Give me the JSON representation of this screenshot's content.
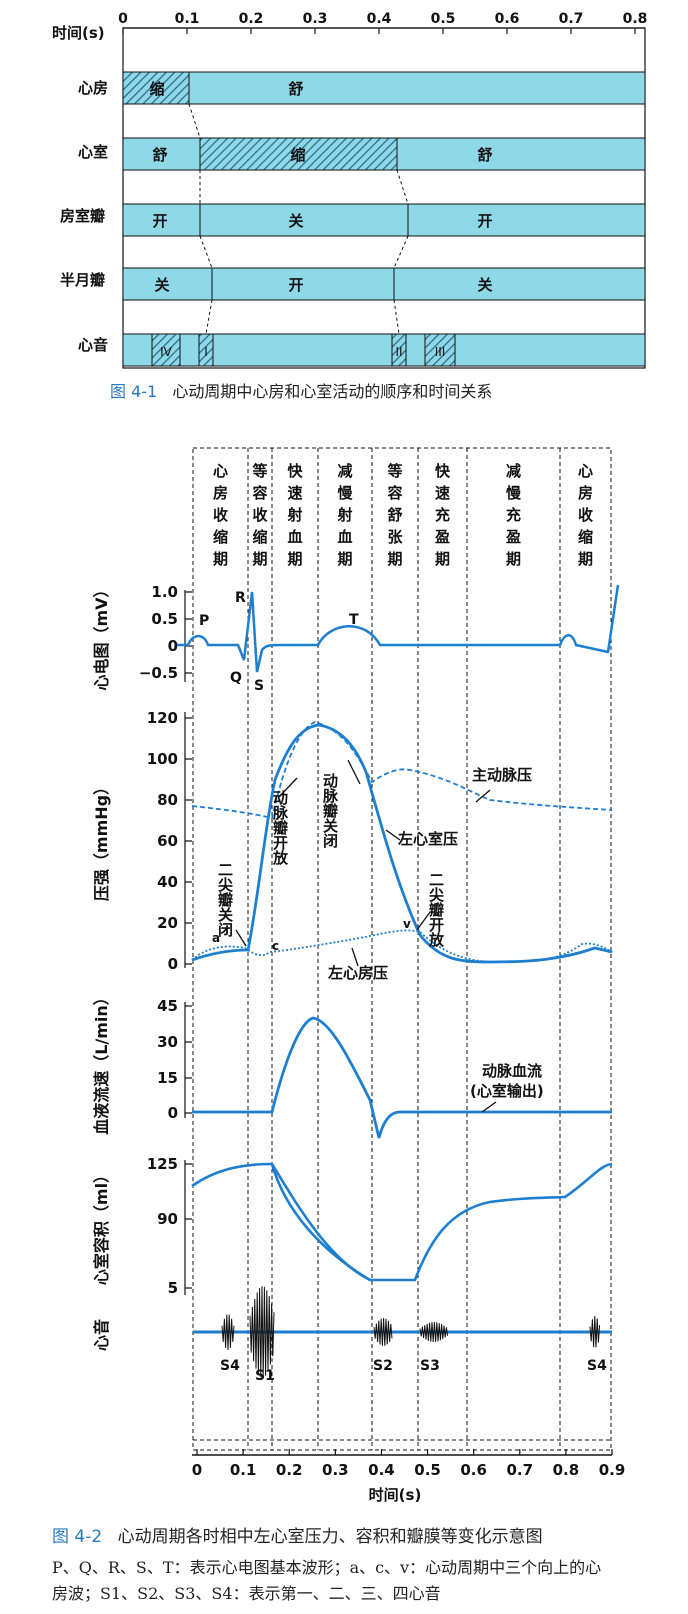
{
  "fig1": {
    "time_label": "时间(s)",
    "time_ticks": [
      "0",
      "0.1",
      "0.2",
      "0.3",
      "0.4",
      "0.5",
      "0.6",
      "0.7",
      "0.8"
    ],
    "rows": [
      {
        "name": "心房",
        "segments": [
          {
            "text": "缩",
            "state": "contract"
          },
          {
            "text": "舒",
            "state": "relax"
          }
        ]
      },
      {
        "name": "心室",
        "segments": [
          {
            "text": "舒",
            "state": "relax"
          },
          {
            "text": "缩",
            "state": "contract"
          },
          {
            "text": "舒",
            "state": "relax"
          }
        ]
      },
      {
        "name": "房室瓣",
        "segments": [
          {
            "text": "开"
          },
          {
            "text": "关"
          },
          {
            "text": "开"
          }
        ]
      },
      {
        "name": "半月瓣",
        "segments": [
          {
            "text": "关"
          },
          {
            "text": "开"
          },
          {
            "text": "关"
          }
        ]
      },
      {
        "name": "心音",
        "sounds": [
          "IV",
          "I",
          "II",
          "III"
        ]
      }
    ],
    "caption_num": "图 4-1",
    "caption_text": "心动周期中心房和心室活动的顺序和时间关系"
  },
  "fig2": {
    "phases": [
      "心房收缩期",
      "等容收缩期",
      "快速射血期",
      "减慢射血期",
      "等容舒张期",
      "快速充盈期",
      "减慢充盈期",
      "心房收缩期"
    ],
    "ecg": {
      "ylabel": "心电图（mV）",
      "yticks": [
        "1.0",
        "0.5",
        "0",
        "−0.5"
      ],
      "wave_labels": [
        "P",
        "Q",
        "R",
        "S",
        "T"
      ]
    },
    "pressure": {
      "ylabel": "压强（mmHg）",
      "yticks": [
        "120",
        "100",
        "80",
        "60",
        "40",
        "20",
        "0"
      ],
      "annotations": [
        "主动脉压",
        "动脉瓣开放",
        "动脉瓣关闭",
        "左心室压",
        "二尖瓣关闭",
        "二尖瓣开放",
        "左心房压",
        "a",
        "c",
        "v"
      ]
    },
    "flow": {
      "ylabel": "血液流速（L/min）",
      "yticks": [
        "45",
        "30",
        "15",
        "0"
      ],
      "annotation": "动脉血流",
      "annotation2": "(心室输出)"
    },
    "volume": {
      "ylabel": "心室容积（ml）",
      "yticks": [
        "125",
        "90",
        "5"
      ]
    },
    "sound": {
      "ylabel": "心音",
      "labels": [
        "S4",
        "S1",
        "S2",
        "S3",
        "S4"
      ]
    },
    "xaxis": {
      "label": "时间(s)",
      "ticks": [
        "0",
        "0.1",
        "0.2",
        "0.3",
        "0.4",
        "0.5",
        "0.6",
        "0.7",
        "0.8",
        "0.9"
      ]
    },
    "caption_num": "图 4-2",
    "caption_text": "心动周期各时相中左心室压力、容积和瓣膜等变化示意图",
    "note_line1": "P、Q、R、S、T：表示心电图基本波形；a、c、v：心动周期中三个向上的心",
    "note_line2": "房波；S1、S2、S3、S4：表示第一、二、三、四心音"
  },
  "colors": {
    "band": "#8fd8e8",
    "band_dark": "#2b6a88",
    "curve": "#1e7fd0",
    "caption": "#2a78c2"
  }
}
